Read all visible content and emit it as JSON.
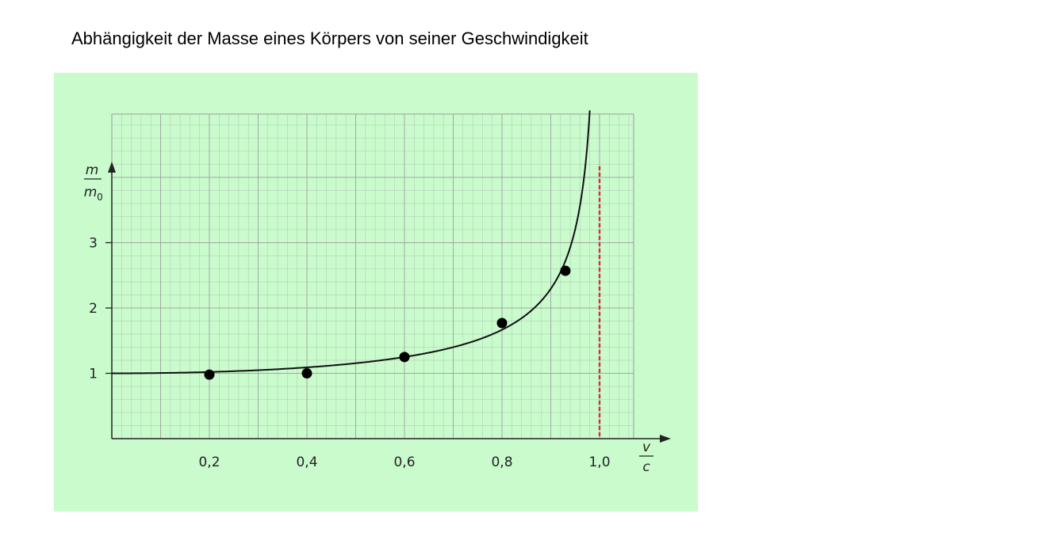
{
  "page": {
    "title": "Abhängigkeit der Masse eines Körpers von seiner Geschwindigkeit",
    "background": "#ffffff",
    "panel_color": "#c9fbcd",
    "grid_color": "#9c9c9c",
    "curve_color": "#111111",
    "asymptote_color": "#e0283c"
  },
  "chart_data": {
    "type": "line",
    "title": "Abhängigkeit der Masse eines Körpers von seiner Geschwindigkeit",
    "xlabel": {
      "num": "v",
      "den": "c"
    },
    "ylabel": {
      "num": "m",
      "den": "m",
      "den_sub": "0"
    },
    "xlim": [
      0,
      1.0
    ],
    "ylim": [
      0,
      5
    ],
    "x_ticks": [
      {
        "value": 0.2,
        "label": "0,2"
      },
      {
        "value": 0.4,
        "label": "0,4"
      },
      {
        "value": 0.6,
        "label": "0,6"
      },
      {
        "value": 0.8,
        "label": "0,8"
      },
      {
        "value": 1.0,
        "label": "1,0"
      }
    ],
    "y_ticks": [
      {
        "value": 1,
        "label": "1"
      },
      {
        "value": 2,
        "label": "2"
      },
      {
        "value": 3,
        "label": "3"
      }
    ],
    "grid": true,
    "series": [
      {
        "kind": "curve",
        "formula": "m/m0 = 1/sqrt(1-(v/c)^2)",
        "x_range": [
          0,
          0.98
        ]
      },
      {
        "kind": "points",
        "x": [
          0.2,
          0.4,
          0.6,
          0.8,
          0.93
        ],
        "y": [
          0.98,
          1.0,
          1.25,
          1.77,
          2.57
        ]
      }
    ],
    "asymptote": {
      "x": 1.0,
      "style": "dashed"
    }
  }
}
